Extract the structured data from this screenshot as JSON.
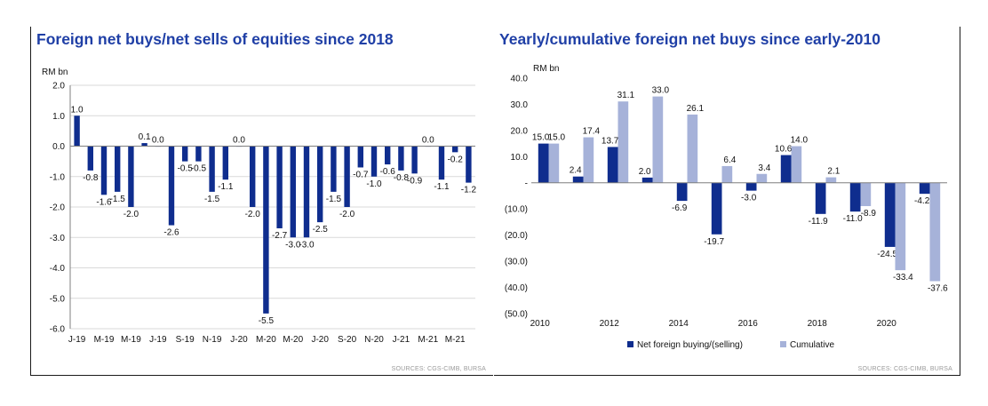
{
  "colors": {
    "title": "#1f3fa6",
    "net": "#0f2d8e",
    "cumulative": "#a6b2d9"
  },
  "chart_data": [
    {
      "type": "bar",
      "title": "Foreign net buys/net sells of equities since 2018",
      "ylabel": "RM bn",
      "ylim": [
        -6.0,
        2.0
      ],
      "yticks": [
        "2.0",
        "1.0",
        "0.0",
        "-1.0",
        "-2.0",
        "-3.0",
        "-4.0",
        "-5.0",
        "-6.0"
      ],
      "xtick_labels": [
        "J-19",
        "M-19",
        "M-19",
        "J-19",
        "S-19",
        "N-19",
        "J-20",
        "M-20",
        "M-20",
        "J-20",
        "S-20",
        "N-20",
        "J-21",
        "M-21",
        "M-21"
      ],
      "values": [
        1.0,
        -0.8,
        -1.6,
        -1.5,
        -2.0,
        0.1,
        0.0,
        -2.6,
        -0.5,
        -0.5,
        -1.5,
        -1.1,
        0.0,
        -2.0,
        -5.5,
        -2.7,
        -3.0,
        -3.0,
        -2.5,
        -1.5,
        -2.0,
        -0.7,
        -1.0,
        -0.6,
        -0.8,
        -0.9,
        0.0,
        -1.1,
        -0.2,
        -1.2
      ],
      "data_labels": [
        "1.0",
        "-0.8",
        "-1.6",
        "-1.5",
        "-2.0",
        "0.1",
        "0.0",
        "-2.6",
        "-0.5",
        "-0.5",
        "-1.5",
        "-1.1",
        "0.0",
        "-2.0",
        "-5.5",
        "-2.7",
        "-3.0",
        "-3.0",
        "-2.5",
        "-1.5",
        "-2.0",
        "-0.7",
        "-1.0",
        "-0.6",
        "-0.8",
        "-0.9",
        "0.0",
        "-1.1",
        "-0.2",
        "-1.2"
      ],
      "grid": true,
      "source": "SOURCES: CGS-CIMB, BURSA"
    },
    {
      "type": "bar",
      "title": "Yearly/cumulative foreign net buys since early-2010",
      "ylabel": "RM bn",
      "ylim": [
        -50.0,
        40.0
      ],
      "yticks": [
        "40.0",
        "30.0",
        "20.0",
        "10.0",
        "-",
        "(10.0)",
        "(20.0)",
        "(30.0)",
        "(40.0)",
        "(50.0)"
      ],
      "categories": [
        "2010",
        "2011",
        "2012",
        "2013",
        "2014",
        "2015",
        "2016",
        "2017",
        "2018",
        "2019",
        "2020",
        "2021"
      ],
      "xtick_labels": [
        "2010",
        "2012",
        "2014",
        "2016",
        "2018",
        "2020"
      ],
      "series": [
        {
          "name": "Net foreign buying/(selling)",
          "values": [
            15.0,
            2.4,
            13.7,
            2.0,
            -6.9,
            -19.7,
            -3.0,
            10.6,
            -11.9,
            -11.0,
            -24.5,
            -4.2
          ],
          "labels": [
            "15.0",
            "2.4",
            "13.7",
            "2.0",
            "-6.9",
            "-19.7",
            "-3.0",
            "10.6",
            "-11.9",
            "-11.0",
            "-24.5",
            "-4.2"
          ]
        },
        {
          "name": "Cumulative",
          "values": [
            15.0,
            17.4,
            31.1,
            33.0,
            26.1,
            6.4,
            3.4,
            14.0,
            2.1,
            -8.9,
            -33.4,
            -37.6
          ],
          "labels": [
            "15.0",
            "17.4",
            "31.1",
            "33.0",
            "26.1",
            "6.4",
            "3.4",
            "14.0",
            "2.1",
            "-8.9",
            "-33.4",
            "-37.6"
          ]
        }
      ],
      "legend": "bottom",
      "source": "SOURCES: CGS-CIMB, BURSA"
    }
  ]
}
